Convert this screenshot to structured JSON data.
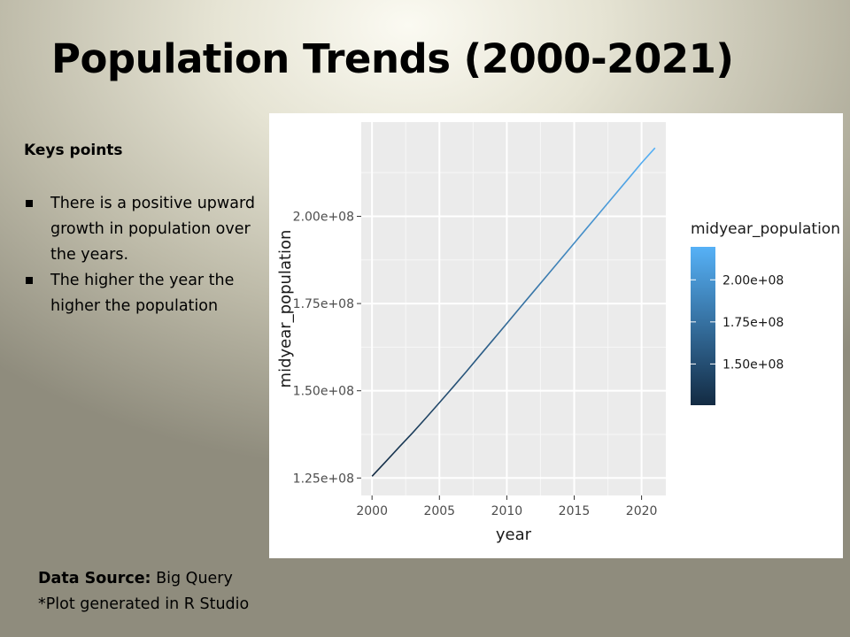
{
  "slide": {
    "title": "Population Trends (2000-2021)",
    "key_heading": "Keys points",
    "bullets": [
      "There is a positive upward growth in population over the years.",
      "The higher the year the higher the population"
    ],
    "source_label": "Data Source:",
    "source_value": " Big Query",
    "note": "*Plot generated in R Studio"
  },
  "chart_data": {
    "type": "line",
    "title": "",
    "xlabel": "year",
    "ylabel": "midyear_population",
    "xlim": [
      1999.2,
      2021.8
    ],
    "ylim": [
      120000000,
      227000000
    ],
    "x_ticks": [
      2000,
      2005,
      2010,
      2015,
      2020
    ],
    "x_tick_labels": [
      "2000",
      "2005",
      "2010",
      "2015",
      "2020"
    ],
    "y_ticks": [
      125000000,
      150000000,
      175000000,
      200000000
    ],
    "y_tick_labels": [
      "1.25e+08",
      "1.50e+08",
      "1.75e+08",
      "2.00e+08"
    ],
    "grid": true,
    "series": [
      {
        "x": [
          2000,
          2001,
          2002,
          2003,
          2004,
          2005,
          2006,
          2007,
          2008,
          2009,
          2010,
          2011,
          2012,
          2013,
          2014,
          2015,
          2016,
          2017,
          2018,
          2019,
          2020,
          2021
        ],
        "values": [
          125500000,
          129600000,
          133800000,
          137900000,
          142200000,
          146600000,
          151000000,
          155500000,
          160100000,
          164700000,
          169300000,
          173900000,
          178500000,
          183100000,
          187700000,
          192300000,
          196900000,
          201500000,
          206100000,
          210700000,
          215300000,
          219600000
        ]
      }
    ],
    "color_scale": {
      "title": "midyear_population",
      "low_color": "#132b43",
      "high_color": "#56b1f7",
      "range": [
        125500000,
        219600000
      ],
      "breaks": [
        150000000,
        175000000,
        200000000
      ],
      "break_labels": [
        "1.50e+08",
        "1.75e+08",
        "2.00e+08"
      ]
    },
    "panel_background": "#ebebeb",
    "legend_position": "right"
  }
}
